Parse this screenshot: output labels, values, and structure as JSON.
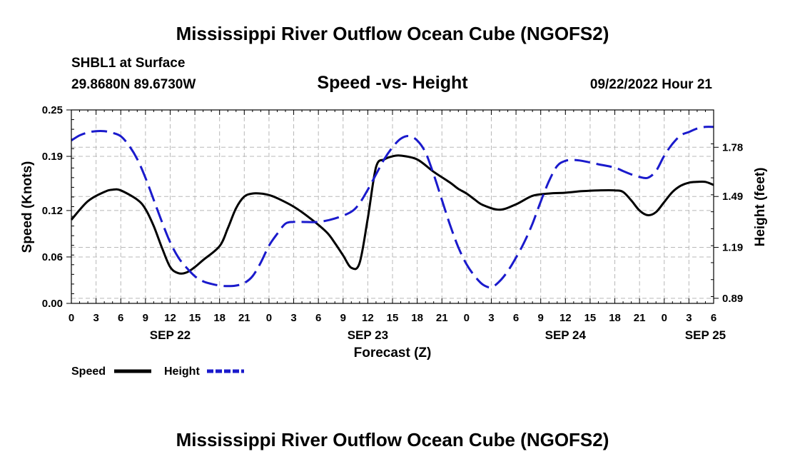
{
  "page": {
    "title_top": "Mississippi River Outflow Ocean Cube (NGOFS2)",
    "title_bottom": "Mississippi River Outflow Ocean Cube (NGOFS2)",
    "station": "SHBL1 at Surface",
    "coords": "29.8680N  89.6730W",
    "subtitle": "Speed -vs- Height",
    "datetime": "09/22/2022 Hour 21"
  },
  "chart_data": {
    "type": "line",
    "xlabel": "Forecast (Z)",
    "ylabel": "Speed (Knots)",
    "y2label": "Height (feet)",
    "xlim": [
      0,
      78
    ],
    "ylim": [
      0,
      0.25
    ],
    "y2lim": [
      0.86,
      2.0
    ],
    "grid": true,
    "x_tick_labels": [
      "0",
      "3",
      "6",
      "9",
      "12",
      "15",
      "18",
      "21",
      "0",
      "3",
      "6",
      "9",
      "12",
      "15",
      "18",
      "21",
      "0",
      "3",
      "6",
      "9",
      "12",
      "15",
      "18",
      "21",
      "0",
      "3",
      "6"
    ],
    "y_tick_values": [
      0.0,
      0.06,
      0.12,
      0.19,
      0.25
    ],
    "y_tick_labels": [
      "0.00",
      "0.06",
      "0.12",
      "0.19",
      "0.25"
    ],
    "y2_tick_values": [
      0.89,
      1.19,
      1.49,
      1.78
    ],
    "y2_tick_labels": [
      "0.89",
      "1.19",
      "1.49",
      "1.78"
    ],
    "date_labels": [
      {
        "label": "SEP 22",
        "x": 12
      },
      {
        "label": "SEP 23",
        "x": 36
      },
      {
        "label": "SEP 24",
        "x": 60
      },
      {
        "label": "SEP 25",
        "x": 77
      }
    ],
    "legend": {
      "position": "bottom-left",
      "speed_label": "Speed",
      "height_label": "Height"
    },
    "series": [
      {
        "name": "Speed",
        "axis": "left",
        "color": "#000000",
        "style": "solid",
        "x": [
          0,
          2,
          4,
          5,
          6,
          8,
          9,
          10,
          11,
          12,
          13,
          14,
          15,
          16,
          18,
          19,
          20,
          21,
          22,
          23,
          24,
          25,
          27,
          29,
          31,
          32,
          33,
          34,
          35,
          36,
          37,
          38,
          39,
          40,
          42,
          44,
          46,
          47,
          48,
          49,
          50,
          52,
          54,
          56,
          58,
          60,
          62,
          64,
          66,
          67,
          68,
          69,
          70,
          71,
          72,
          73,
          74,
          75,
          76,
          77,
          78
        ],
        "values": [
          0.108,
          0.132,
          0.144,
          0.147,
          0.146,
          0.134,
          0.122,
          0.1,
          0.072,
          0.047,
          0.039,
          0.04,
          0.047,
          0.056,
          0.074,
          0.097,
          0.123,
          0.138,
          0.142,
          0.142,
          0.14,
          0.136,
          0.125,
          0.11,
          0.092,
          0.078,
          0.062,
          0.046,
          0.052,
          0.11,
          0.176,
          0.186,
          0.19,
          0.191,
          0.186,
          0.17,
          0.156,
          0.148,
          0.142,
          0.134,
          0.127,
          0.121,
          0.128,
          0.139,
          0.142,
          0.143,
          0.145,
          0.146,
          0.146,
          0.144,
          0.133,
          0.12,
          0.114,
          0.118,
          0.131,
          0.144,
          0.152,
          0.156,
          0.157,
          0.157,
          0.153
        ]
      },
      {
        "name": "Height",
        "axis": "right",
        "color": "#1a1acc",
        "style": "dashed",
        "x": [
          0,
          1,
          2,
          3,
          4,
          5,
          6,
          7,
          8,
          9,
          10,
          11,
          12,
          13,
          14,
          15,
          16,
          17,
          18,
          19,
          20,
          21,
          22,
          23,
          24,
          25,
          26,
          27,
          28,
          30,
          32,
          34,
          35,
          36,
          37,
          38,
          39,
          40,
          41,
          42,
          43,
          44,
          45,
          46,
          47,
          48,
          49,
          50,
          51,
          52,
          53,
          54,
          55,
          56,
          57,
          58,
          59,
          60,
          61,
          62,
          64,
          66,
          67,
          68,
          69,
          70,
          71,
          72,
          73,
          74,
          75,
          76,
          77,
          78
        ],
        "values": [
          1.82,
          1.85,
          1.867,
          1.875,
          1.875,
          1.865,
          1.845,
          1.79,
          1.71,
          1.6,
          1.47,
          1.34,
          1.22,
          1.13,
          1.07,
          1.02,
          0.99,
          0.975,
          0.965,
          0.962,
          0.965,
          0.98,
          1.02,
          1.1,
          1.2,
          1.27,
          1.33,
          1.34,
          1.34,
          1.34,
          1.36,
          1.4,
          1.45,
          1.53,
          1.62,
          1.71,
          1.78,
          1.83,
          1.846,
          1.82,
          1.75,
          1.62,
          1.47,
          1.32,
          1.19,
          1.09,
          1.02,
          0.97,
          0.955,
          0.99,
          1.05,
          1.13,
          1.22,
          1.33,
          1.46,
          1.58,
          1.67,
          1.7,
          1.705,
          1.7,
          1.68,
          1.66,
          1.64,
          1.62,
          1.605,
          1.6,
          1.64,
          1.73,
          1.8,
          1.85,
          1.87,
          1.89,
          1.9,
          1.9
        ]
      }
    ]
  }
}
